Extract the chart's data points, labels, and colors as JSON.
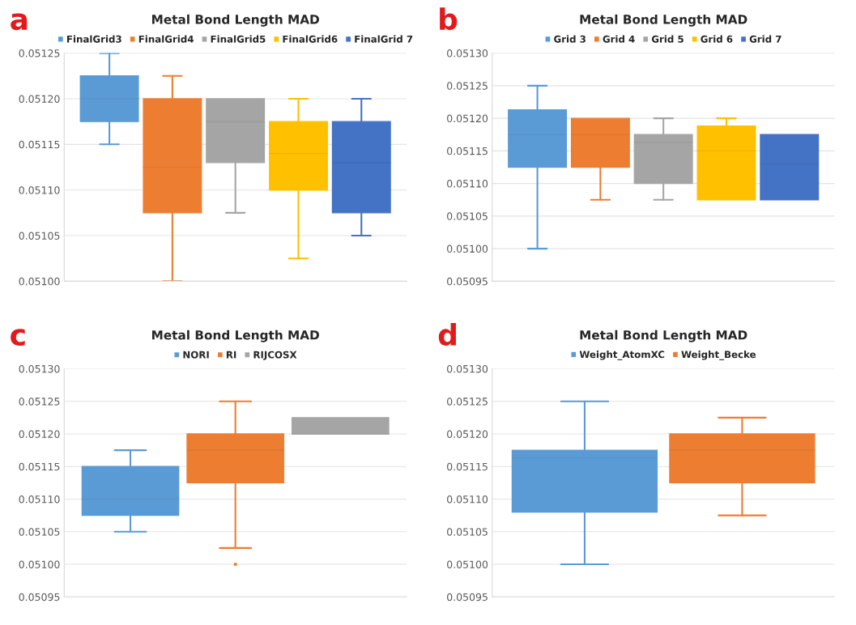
{
  "chart_data": [
    {
      "type": "box",
      "title": "Metal Bond Length MAD",
      "annotations": [
        "a"
      ],
      "categories": [
        null
      ],
      "legend": "top",
      "grid": "y",
      "tick_labels": "y",
      "ylim": [
        0.051,
        0.05125
      ],
      "yticks": [
        {
          "value": 0.051,
          "label": "0.05100"
        },
        0.05105,
        {
          "value": 0.0511,
          "label": "0.05110"
        },
        0.05115,
        {
          "value": 0.0512,
          "label": "0.05120"
        },
        0.05125
      ],
      "series": [
        {
          "name": "FinalGrid3",
          "color": "#5b9bd5",
          "boxes": [
            {
              "low": 0.05115,
              "q1": 0.051175,
              "median": 0.0512,
              "q3": 0.051225,
              "high": 0.05125
            }
          ]
        },
        {
          "name": "FinalGrid4",
          "color": "#ed7d31",
          "boxes": [
            {
              "low": 0.051,
              "q1": 0.051075,
              "median": 0.051125,
              "q3": 0.0512,
              "high": 0.051225
            }
          ]
        },
        {
          "name": "FinalGrid5",
          "color": "#a5a5a5",
          "boxes": [
            {
              "low": 0.051075,
              "q1": 0.05113,
              "median": 0.051175,
              "q3": 0.0512,
              "high": 0.0512
            }
          ]
        },
        {
          "name": "FinalGrid6",
          "color": "#ffc000",
          "boxes": [
            {
              "low": 0.051025,
              "q1": 0.0511,
              "median": 0.05114,
              "q3": 0.051175,
              "high": 0.0512
            }
          ]
        },
        {
          "name": "FinalGrid 7",
          "color": "#4472c4",
          "boxes": [
            {
              "low": 0.05105,
              "q1": 0.051075,
              "median": 0.05113,
              "q3": 0.051175,
              "high": 0.0512
            }
          ]
        }
      ]
    },
    {
      "type": "box",
      "title": "Metal Bond Length MAD",
      "annotations": [
        "b"
      ],
      "categories": [
        null
      ],
      "legend": "top",
      "grid": "y",
      "tick_labels": "y",
      "ylim": [
        0.05095,
        0.0513
      ],
      "yticks": [
        0.05095,
        {
          "value": 0.051,
          "label": "0.05100"
        },
        0.05105,
        {
          "value": 0.0511,
          "label": "0.05110"
        },
        0.05115,
        {
          "value": 0.0512,
          "label": "0.05120"
        },
        0.05125,
        {
          "value": 0.0513,
          "label": "0.05130"
        }
      ],
      "series": [
        {
          "name": "Grid 3",
          "color": "#5b9bd5",
          "boxes": [
            {
              "low": 0.051,
              "q1": 0.051125,
              "median": 0.051175,
              "q3": 0.051213,
              "high": 0.05125
            }
          ]
        },
        {
          "name": "Grid 4",
          "color": "#ed7d31",
          "boxes": [
            {
              "low": 0.051075,
              "q1": 0.051125,
              "median": 0.051175,
              "q3": 0.0512,
              "high": 0.0512
            }
          ]
        },
        {
          "name": "Grid 5",
          "color": "#a5a5a5",
          "boxes": [
            {
              "low": 0.051075,
              "q1": 0.0511,
              "median": 0.051163,
              "q3": 0.051175,
              "high": 0.0512
            }
          ]
        },
        {
          "name": "Grid 6",
          "color": "#ffc000",
          "boxes": [
            {
              "low": 0.051075,
              "q1": 0.051075,
              "median": 0.05115,
              "q3": 0.051188,
              "high": 0.0512
            }
          ]
        },
        {
          "name": "Grid 7",
          "color": "#4472c4",
          "boxes": [
            {
              "low": 0.051075,
              "q1": 0.051075,
              "median": 0.05113,
              "q3": 0.051175,
              "high": 0.051175
            }
          ]
        }
      ]
    },
    {
      "type": "box",
      "title": "Metal Bond Length MAD",
      "annotations": [
        "c"
      ],
      "categories": [
        null
      ],
      "legend": "top",
      "grid": "y",
      "tick_labels": "y",
      "ylim": [
        0.05095,
        0.0513
      ],
      "yticks": [
        0.05095,
        {
          "value": 0.051,
          "label": "0.05100"
        },
        0.05105,
        {
          "value": 0.0511,
          "label": "0.05110"
        },
        0.05115,
        {
          "value": 0.0512,
          "label": "0.05120"
        },
        0.05125,
        {
          "value": 0.0513,
          "label": "0.05130"
        }
      ],
      "series": [
        {
          "name": "NORI",
          "color": "#5b9bd5",
          "boxes": [
            {
              "low": 0.05105,
              "q1": 0.051075,
              "median": 0.0511,
              "q3": 0.05115,
              "high": 0.051175
            }
          ]
        },
        {
          "name": "RI",
          "color": "#ed7d31",
          "boxes": [
            {
              "low": 0.051025,
              "q1": 0.051125,
              "median": 0.051175,
              "q3": 0.0512,
              "high": 0.05125,
              "outliers": [
                0.051
              ]
            }
          ]
        },
        {
          "name": "RIJCOSX",
          "color": "#a5a5a5",
          "boxes": [
            {
              "low": 0.0512,
              "q1": 0.0512,
              "median": 0.0512,
              "q3": 0.051225,
              "high": 0.051225
            }
          ]
        }
      ]
    },
    {
      "type": "box",
      "title": "Metal Bond Length MAD",
      "annotations": [
        "d"
      ],
      "categories": [
        null
      ],
      "legend": "top",
      "grid": "y",
      "tick_labels": "y",
      "ylim": [
        0.05095,
        0.0513
      ],
      "yticks": [
        0.05095,
        {
          "value": 0.051,
          "label": "0.05100"
        },
        0.05105,
        {
          "value": 0.0511,
          "label": "0.05110"
        },
        0.05115,
        {
          "value": 0.0512,
          "label": "0.05120"
        },
        0.05125,
        {
          "value": 0.0513,
          "label": "0.05130"
        }
      ],
      "series": [
        {
          "name": "Weight_AtomXC",
          "color": "#5b9bd5",
          "boxes": [
            {
              "low": 0.051,
              "q1": 0.05108,
              "median": 0.051163,
              "q3": 0.051175,
              "high": 0.05125
            }
          ]
        },
        {
          "name": "Weight_Becke",
          "color": "#ed7d31",
          "boxes": [
            {
              "low": 0.051075,
              "q1": 0.051125,
              "median": 0.051175,
              "q3": 0.0512,
              "high": 0.051225
            }
          ]
        }
      ]
    }
  ]
}
